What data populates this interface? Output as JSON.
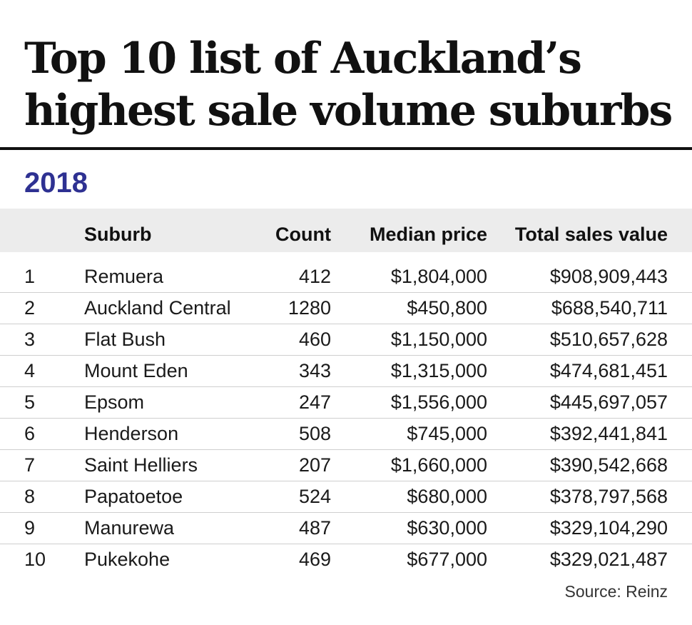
{
  "header": {
    "title_line1": "Top 10 list of Auckland’s",
    "title_line2": "highest sale volume suburbs",
    "year": "2018"
  },
  "chart_data": {
    "type": "table",
    "columns": [
      "",
      "Suburb",
      "Count",
      "Median price",
      "Total sales value"
    ],
    "rows": [
      {
        "rank": "1",
        "suburb": "Remuera",
        "count": "412",
        "median": "$1,804,000",
        "total": "$908,909,443"
      },
      {
        "rank": "2",
        "suburb": "Auckland Central",
        "count": "1280",
        "median": "$450,800",
        "total": "$688,540,711"
      },
      {
        "rank": "3",
        "suburb": "Flat Bush",
        "count": "460",
        "median": "$1,150,000",
        "total": "$510,657,628"
      },
      {
        "rank": "4",
        "suburb": "Mount Eden",
        "count": "343",
        "median": "$1,315,000",
        "total": "$474,681,451"
      },
      {
        "rank": "5",
        "suburb": "Epsom",
        "count": "247",
        "median": "$1,556,000",
        "total": "$445,697,057"
      },
      {
        "rank": "6",
        "suburb": "Henderson",
        "count": "508",
        "median": "$745,000",
        "total": "$392,441,841"
      },
      {
        "rank": "7",
        "suburb": "Saint Helliers",
        "count": "207",
        "median": "$1,660,000",
        "total": "$390,542,668"
      },
      {
        "rank": "8",
        "suburb": "Papatoetoe",
        "count": "524",
        "median": "$680,000",
        "total": "$378,797,568"
      },
      {
        "rank": "9",
        "suburb": "Manurewa",
        "count": "487",
        "median": "$630,000",
        "total": "$329,104,290"
      },
      {
        "rank": "10",
        "suburb": "Pukekohe",
        "count": "469",
        "median": "$677,000",
        "total": "$329,021,487"
      }
    ]
  },
  "footer": {
    "source": "Source: Reinz"
  },
  "colors": {
    "year_accent": "#2e3192",
    "header_band": "#ececec"
  }
}
